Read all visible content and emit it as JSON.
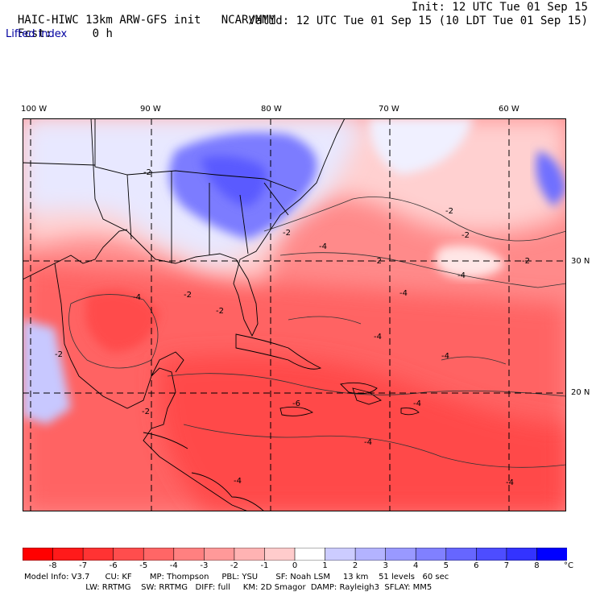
{
  "header": {
    "model_title": "HAIC-HIWC 13km ARW-GFS init",
    "org": "NCAR/MMM",
    "forecast_label": "Fcst:",
    "forecast_value": "0 h",
    "init": "Init: 12 UTC Tue 01 Sep 15",
    "valid": "Valid: 12 UTC Tue 01 Sep 15 (10 LDT Tue 01 Sep 15)",
    "field": "Lifted index"
  },
  "map": {
    "lon_labels": [
      "100 W",
      "90 W",
      "80 W",
      "70 W",
      "60 W"
    ],
    "lat_labels": [
      "30 N",
      "20 N"
    ],
    "contour_labels": [
      "-2",
      "-4",
      "-6"
    ]
  },
  "colorbar": {
    "tick_labels": [
      "-8",
      "-7",
      "-6",
      "-5",
      "-4",
      "-3",
      "-2",
      "-1",
      "0",
      "1",
      "2",
      "3",
      "4",
      "5",
      "6",
      "7",
      "8"
    ],
    "unit": "°C",
    "colors": [
      "#ff0000",
      "#ff1a1a",
      "#ff3333",
      "#ff4d4d",
      "#ff6666",
      "#ff8080",
      "#ff9999",
      "#ffb3b3",
      "#ffcccc",
      "#ffffff",
      "#ccccff",
      "#b3b3ff",
      "#9999ff",
      "#8080ff",
      "#6666ff",
      "#4d4dff",
      "#3333ff",
      "#0000ff"
    ]
  },
  "model_info": {
    "line1": "Model Info: V3.7      CU: KF       MP: Thompson     PBL: YSU       SF: Noah LSM     13 km    51 levels   60 sec",
    "line2": "                        LW: RRTMG    SW: RRTMG   DIFF: full     KM: 2D Smagor  DAMP: Rayleigh3  SFLAY: MM5"
  }
}
